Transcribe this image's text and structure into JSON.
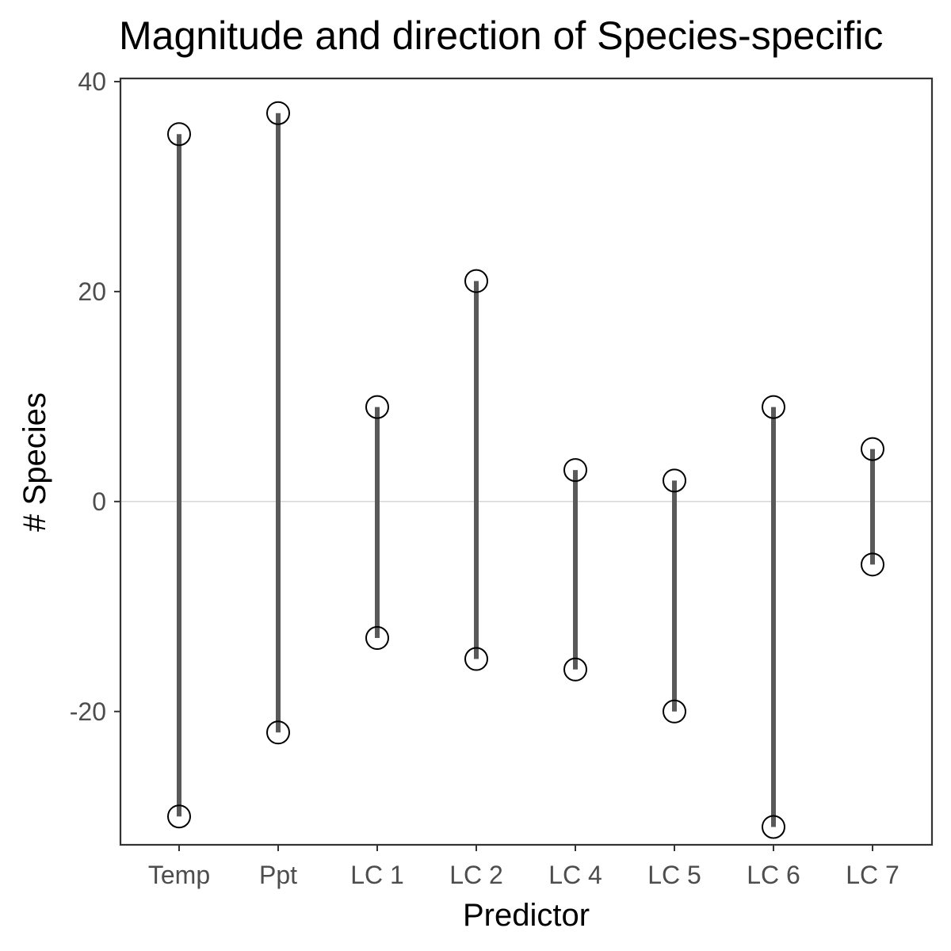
{
  "chart_data": {
    "type": "range",
    "title": "Magnitude and direction of Species-specific",
    "xlabel": "Predictor",
    "ylabel": "# Species",
    "categories": [
      "Temp",
      "Ppt",
      "LC 1",
      "LC 2",
      "LC 4",
      "LC 5",
      "LC 6",
      "LC 7"
    ],
    "series": [
      {
        "values": [
          35,
          37,
          9,
          21,
          3,
          2,
          9,
          5
        ]
      },
      {
        "values": [
          -30,
          -22,
          -13,
          -15,
          -16,
          -20,
          -31,
          -6
        ]
      }
    ],
    "yticks": [
      "-20",
      "0",
      "20",
      "40"
    ],
    "ylim": [
      -32.7,
      40.3
    ],
    "reference_line_y": 0,
    "grid": false,
    "colors": {
      "segment": "#595959",
      "point_stroke": "#000000",
      "zero_line": "#c8c8c8",
      "panel_border": "#333333",
      "tick_text": "#4d4d4d"
    }
  }
}
